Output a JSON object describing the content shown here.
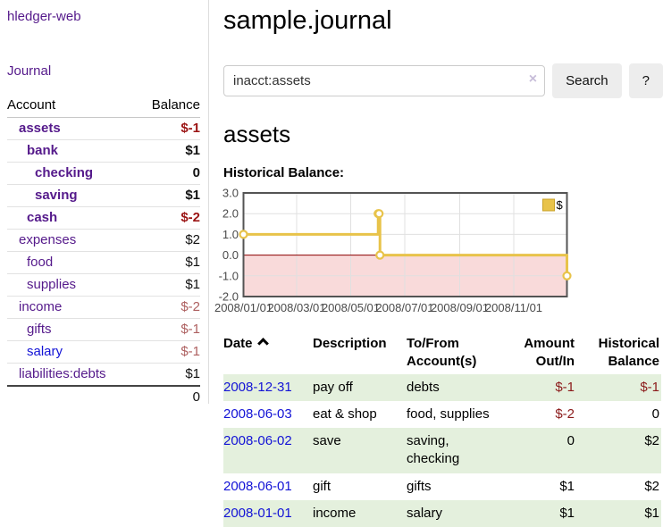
{
  "palette": {
    "link_purple": "#551a8b",
    "link_blue": "#1313d6",
    "negative_red": "#8b1a1a",
    "row_green": "#e4f0dd",
    "chart_gold": "#e8c34a"
  },
  "sidebar": {
    "app_title": "hledger-web",
    "nav_journal": "Journal",
    "accounts": {
      "col_account": "Account",
      "col_balance": "Balance",
      "rows": [
        {
          "name": "assets",
          "balance": "$-1",
          "indent": 1,
          "bold": true,
          "bal_class": "neg-strong"
        },
        {
          "name": "bank",
          "balance": "$1",
          "indent": 2,
          "bold": true,
          "bal_class": "pos-bold"
        },
        {
          "name": "checking",
          "balance": "0",
          "indent": 3,
          "bold": true,
          "bal_class": "pos-bold"
        },
        {
          "name": "saving",
          "balance": "$1",
          "indent": 3,
          "bold": true,
          "bal_class": "pos-bold"
        },
        {
          "name": "cash",
          "balance": "$-2",
          "indent": 2,
          "bold": true,
          "bal_class": "neg-strong"
        },
        {
          "name": "expenses",
          "balance": "$2",
          "indent": 1,
          "bold": false,
          "bal_class": "pos"
        },
        {
          "name": "food",
          "balance": "$1",
          "indent": 2,
          "bold": false,
          "bal_class": "pos"
        },
        {
          "name": "supplies",
          "balance": "$1",
          "indent": 2,
          "bold": false,
          "bal_class": "pos"
        },
        {
          "name": "income",
          "balance": "$-2",
          "indent": 1,
          "bold": false,
          "bal_class": "neg-soft"
        },
        {
          "name": "gifts",
          "balance": "$-1",
          "indent": 2,
          "bold": false,
          "bal_class": "neg-soft"
        },
        {
          "name": "salary",
          "balance": "$-1",
          "indent": 2,
          "bold": false,
          "bal_class": "neg-soft",
          "blue": true
        },
        {
          "name": "liabilities:debts",
          "balance": "$1",
          "indent": 1,
          "bold": false,
          "bal_class": "pos"
        }
      ],
      "total": "0"
    }
  },
  "main": {
    "journal_title": "sample.journal",
    "search": {
      "value": "inacct:assets",
      "clear_icon": "×",
      "search_button": "Search",
      "help_button": "?"
    },
    "account_heading": "assets",
    "chart_label": "Historical Balance:",
    "register": {
      "headers": {
        "date": "Date",
        "description": "Description",
        "accounts": "To/From Account(s)",
        "amount": "Amount Out/In",
        "balance": "Historical Balance"
      },
      "rows": [
        {
          "date": "2008-12-31",
          "description": "pay off",
          "accounts": "debts",
          "amount": "$-1",
          "balance": "$-1",
          "amount_neg": true,
          "balance_neg": true
        },
        {
          "date": "2008-06-03",
          "description": "eat & shop",
          "accounts": "food, supplies",
          "amount": "$-2",
          "balance": "0",
          "amount_neg": true,
          "balance_neg": false
        },
        {
          "date": "2008-06-02",
          "description": "save",
          "accounts": "saving, checking",
          "amount": "0",
          "balance": "$2",
          "amount_neg": false,
          "balance_neg": false
        },
        {
          "date": "2008-06-01",
          "description": "gift",
          "accounts": "gifts",
          "amount": "$1",
          "balance": "$2",
          "amount_neg": false,
          "balance_neg": false
        },
        {
          "date": "2008-01-01",
          "description": "income",
          "accounts": "salary",
          "amount": "$1",
          "balance": "$1",
          "amount_neg": false,
          "balance_neg": false
        }
      ]
    }
  },
  "chart_data": {
    "type": "line",
    "step": true,
    "title": "Historical Balance",
    "series": [
      {
        "name": "$",
        "color": "#e8c34a",
        "points": [
          [
            "2008-01-01",
            1
          ],
          [
            "2008-06-01",
            2
          ],
          [
            "2008-06-02",
            2
          ],
          [
            "2008-06-03",
            0
          ],
          [
            "2008-12-31",
            -1
          ]
        ]
      }
    ],
    "x_range": [
      "2008-01-01",
      "2008-12-31"
    ],
    "xtick_labels": [
      "2008/01/01",
      "2008/03/01",
      "2008/05/01",
      "2008/07/01",
      "2008/09/01",
      "2008/11/01"
    ],
    "yticks": [
      3.0,
      2.0,
      1.0,
      0.0,
      -1.0,
      -2.0
    ],
    "ylim": [
      -2,
      3
    ],
    "grid": true,
    "legend_position": "top-right",
    "negative_region_color": "#f9dada",
    "zero_line_color": "#8b0000",
    "frame_color": "#545454",
    "grid_color": "#e0e0e0",
    "marker_fill": "#ffffff"
  }
}
